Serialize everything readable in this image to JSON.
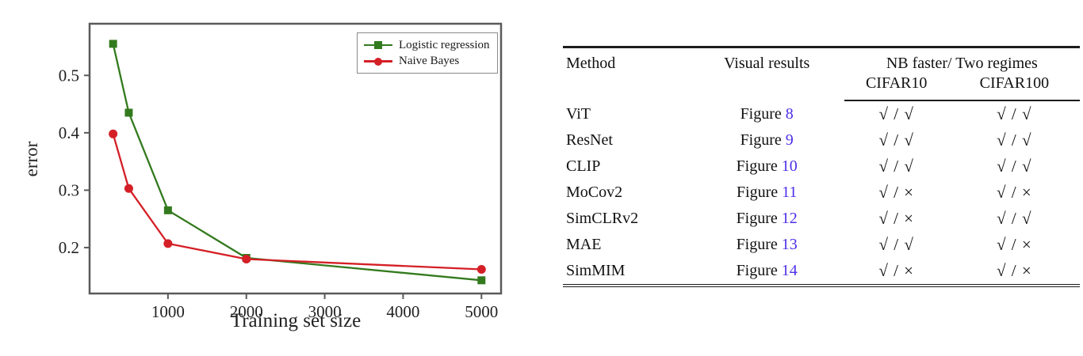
{
  "figure": {
    "ylabel": "error",
    "xlabel": "Training set size"
  },
  "chart_data": {
    "type": "line",
    "title": "",
    "xlabel": "Training set size",
    "ylabel": "error",
    "x": [
      300,
      500,
      1000,
      2000,
      5000
    ],
    "series": [
      {
        "name": "Logistic regression",
        "color": "#337a1e",
        "marker": "square",
        "values": [
          0.555,
          0.435,
          0.265,
          0.182,
          0.143
        ]
      },
      {
        "name": "Naive Bayes",
        "color": "#d41f26",
        "marker": "circle",
        "values": [
          0.398,
          0.303,
          0.207,
          0.18,
          0.162
        ]
      }
    ],
    "xticks": [
      1000,
      2000,
      3000,
      4000,
      5000
    ],
    "yticks": [
      0.2,
      0.3,
      0.4,
      0.5
    ],
    "xlim": [
      0,
      5250
    ],
    "ylim": [
      0.12,
      0.59
    ],
    "grid": false,
    "legend_position": "upper right",
    "axis_color": "#5a5a5a"
  },
  "table": {
    "header": {
      "method": "Method",
      "visual_results": "Visual results",
      "group": "NB faster/ Two regimes",
      "sub1": "CIFAR10",
      "sub2": "CIFAR100"
    },
    "figure_word": "Figure",
    "link_color": "#4b2fe8",
    "rows": [
      {
        "method": "ViT",
        "fig_num": "8",
        "cifar10": "√ / √",
        "cifar100": "√ / √"
      },
      {
        "method": "ResNet",
        "fig_num": "9",
        "cifar10": "√ / √",
        "cifar100": "√ / √"
      },
      {
        "method": "CLIP",
        "fig_num": "10",
        "cifar10": "√ / √",
        "cifar100": "√ / √"
      },
      {
        "method": "MoCov2",
        "fig_num": "11",
        "cifar10": "√ / ×",
        "cifar100": "√ / ×"
      },
      {
        "method": "SimCLRv2",
        "fig_num": "12",
        "cifar10": "√ / ×",
        "cifar100": "√ / √"
      },
      {
        "method": "MAE",
        "fig_num": "13",
        "cifar10": "√ / √",
        "cifar100": "√ / ×"
      },
      {
        "method": "SimMIM",
        "fig_num": "14",
        "cifar10": "√ / ×",
        "cifar100": "√ / ×"
      }
    ]
  }
}
